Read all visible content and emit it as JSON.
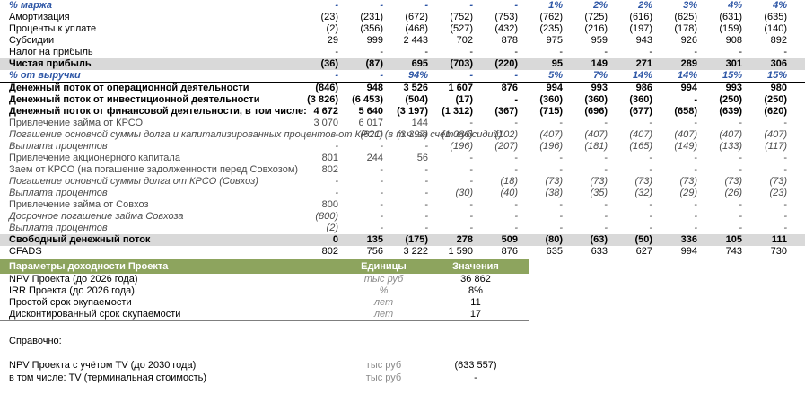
{
  "colors": {
    "accent_green": "#8DA45E",
    "accent_blue": "#2C55A5",
    "row_highlight_gray": "#D9D9D9"
  },
  "main_table": {
    "rows": [
      {
        "label": "% маржа",
        "style": "pct",
        "values": [
          "-",
          "-",
          "-",
          "-",
          "-",
          "1%",
          "2%",
          "2%",
          "3%",
          "4%",
          "4%"
        ]
      },
      {
        "label": "Амортизация",
        "style": "normal",
        "values": [
          "(23)",
          "(231)",
          "(672)",
          "(752)",
          "(753)",
          "(762)",
          "(725)",
          "(616)",
          "(625)",
          "(631)",
          "(635)"
        ]
      },
      {
        "label": "Проценты к уплате",
        "style": "normal",
        "values": [
          "(2)",
          "(356)",
          "(468)",
          "(527)",
          "(432)",
          "(235)",
          "(216)",
          "(197)",
          "(178)",
          "(159)",
          "(140)"
        ]
      },
      {
        "label": "Субсидии",
        "style": "normal",
        "values": [
          "29",
          "999",
          "2 443",
          "702",
          "878",
          "975",
          "959",
          "943",
          "926",
          "908",
          "892"
        ]
      },
      {
        "label": "Налог на прибыль",
        "style": "normal",
        "values": [
          "-",
          "-",
          "-",
          "-",
          "-",
          "-",
          "-",
          "-",
          "-",
          "-",
          "-"
        ]
      },
      {
        "label": "Чистая прибыль",
        "style": "total",
        "values": [
          "(36)",
          "(87)",
          "695",
          "(703)",
          "(220)",
          "95",
          "149",
          "271",
          "289",
          "301",
          "306"
        ]
      },
      {
        "label": "% от выручки",
        "style": "pct",
        "values": [
          "-",
          "-",
          "94%",
          "-",
          "-",
          "5%",
          "7%",
          "14%",
          "14%",
          "15%",
          "15%"
        ]
      },
      {
        "label": "Денежный поток от операционной деятельности",
        "style": "cf-top",
        "values": [
          "(846)",
          "948",
          "3 526",
          "1 607",
          "876",
          "994",
          "993",
          "986",
          "994",
          "993",
          "980"
        ]
      },
      {
        "label": "Денежный поток от инвестиционной деятельности",
        "style": "cf",
        "values": [
          "(3 826)",
          "(6 453)",
          "(504)",
          "(17)",
          "-",
          "(360)",
          "(360)",
          "(360)",
          "-",
          "(250)",
          "(250)"
        ]
      },
      {
        "label": "Денежный поток от финансовой деятельности, в том числе:",
        "style": "cf",
        "values": [
          "4 672",
          "5 640",
          "(3 197)",
          "(1 312)",
          "(367)",
          "(715)",
          "(696)",
          "(677)",
          "(658)",
          "(639)",
          "(620)"
        ]
      },
      {
        "label": "Привлечение займа от КРСО",
        "style": "sub1",
        "values": [
          "3 070",
          "6 017",
          "144",
          "-",
          "-",
          "-",
          "-",
          "-",
          "-",
          "-",
          "-"
        ]
      },
      {
        "label": "Погашение основной суммы долга и капитализированных процентов от КРСО (в т.ч. за счёт субсидий)",
        "style": "sub2",
        "values": [
          "-",
          "(621)",
          "(3 397)",
          "(1 086)",
          "(102)",
          "(407)",
          "(407)",
          "(407)",
          "(407)",
          "(407)",
          "(407)"
        ]
      },
      {
        "label": "Выплата процентов",
        "style": "sub2",
        "values": [
          "-",
          "-",
          "-",
          "(196)",
          "(207)",
          "(196)",
          "(181)",
          "(165)",
          "(149)",
          "(133)",
          "(117)"
        ]
      },
      {
        "label": "Привлечение акционерного капитала",
        "style": "sub1",
        "values": [
          "801",
          "244",
          "56",
          "-",
          "-",
          "-",
          "-",
          "-",
          "-",
          "-",
          "-"
        ]
      },
      {
        "label": "Заем от КРСО (на погашение задолженности перед Совхозом)",
        "style": "sub1",
        "values": [
          "802",
          "-",
          "-",
          "-",
          "-",
          "-",
          "-",
          "-",
          "-",
          "-",
          "-"
        ]
      },
      {
        "label": "Погашение основной суммы долга от КРСО (Совхоз)",
        "style": "sub2",
        "values": [
          "-",
          "-",
          "-",
          "-",
          "(18)",
          "(73)",
          "(73)",
          "(73)",
          "(73)",
          "(73)",
          "(73)"
        ]
      },
      {
        "label": "Выплата процентов",
        "style": "sub2",
        "values": [
          "-",
          "-",
          "-",
          "(30)",
          "(40)",
          "(38)",
          "(35)",
          "(32)",
          "(29)",
          "(26)",
          "(23)"
        ]
      },
      {
        "label": "Привлечение займа от Совхоз",
        "style": "sub1",
        "values": [
          "800",
          "-",
          "-",
          "-",
          "-",
          "-",
          "-",
          "-",
          "-",
          "-",
          "-"
        ]
      },
      {
        "label": "Досрочное погашение займа Совхоза",
        "style": "sub2",
        "values": [
          "(800)",
          "-",
          "-",
          "-",
          "-",
          "-",
          "-",
          "-",
          "-",
          "-",
          "-"
        ]
      },
      {
        "label": "Выплата процентов",
        "style": "sub2",
        "values": [
          "(2)",
          "-",
          "-",
          "-",
          "-",
          "-",
          "-",
          "-",
          "-",
          "-",
          "-"
        ]
      },
      {
        "label": "Свободный денежный поток",
        "style": "total",
        "values": [
          "0",
          "135",
          "(175)",
          "278",
          "509",
          "(80)",
          "(63)",
          "(50)",
          "336",
          "105",
          "111"
        ]
      },
      {
        "label": "CFADS",
        "style": "normal",
        "values": [
          "802",
          "756",
          "3 222",
          "1 590",
          "876",
          "635",
          "633",
          "627",
          "994",
          "743",
          "730"
        ]
      }
    ]
  },
  "params_table": {
    "header": {
      "title": "Параметры доходности Проекта",
      "units": "Единицы",
      "values": "Значения"
    },
    "rows": [
      {
        "label": "NPV Проекта (до 2026 года)",
        "unit": "тыс руб",
        "value": "36 862"
      },
      {
        "label": "IRR Проекта (до 2026 года)",
        "unit": "%",
        "value": "8%"
      },
      {
        "label": "Простой срок окупаемости",
        "unit": "лет",
        "value": "11"
      },
      {
        "label": "Дисконтированный срок окупаемости",
        "unit": "лет",
        "value": "17"
      }
    ]
  },
  "reference": {
    "title": "Справочно:",
    "rows": [
      {
        "label": "NPV Проекта с учётом TV (до 2030 года)",
        "unit": "тыс руб",
        "value": "(633 557)"
      },
      {
        "label": "в том числе: TV (терминальная стоимость)",
        "unit": "тыс руб",
        "value": "-"
      }
    ]
  }
}
